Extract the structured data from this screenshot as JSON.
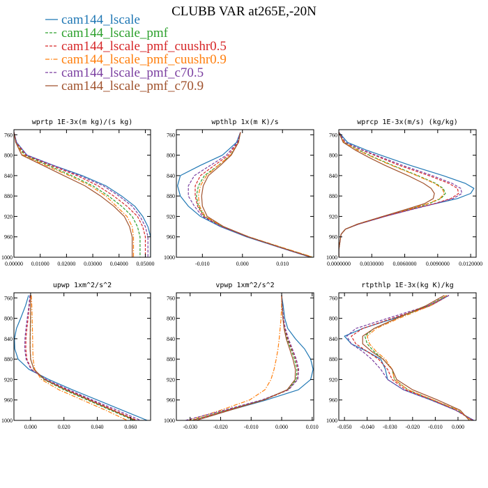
{
  "title": "CLUBB VAR at265E,-20N",
  "legend": [
    {
      "name": "cam144_lscale",
      "color": "#1f77b4",
      "dash": "solid"
    },
    {
      "name": "cam144_lscale_pmf",
      "color": "#2ca02c",
      "dash": "dashed"
    },
    {
      "name": "cam144_lscale_pmf_cuushr0.5",
      "color": "#d62728",
      "dash": "dashed"
    },
    {
      "name": "cam144_lscale_pmf_cuushr0.9",
      "color": "#ff7f0e",
      "dash": "dashdot"
    },
    {
      "name": "cam144_lscale_pmf_c70.5",
      "color": "#7b3fa0",
      "dash": "dashed"
    },
    {
      "name": "cam144_lscale_pmf_c70.9",
      "color": "#a0522d",
      "dash": "solid"
    }
  ],
  "chart_data": [
    {
      "type": "line",
      "title": "wprtp  1E-3x(m kg)/(s kg)",
      "xlim": [
        0,
        0.052
      ],
      "xticks": [
        0,
        0.01,
        0.02,
        0.03,
        0.04,
        0.05
      ],
      "xticklabels": [
        "0.00000",
        "0.01000",
        "0.02000",
        "0.03000",
        "0.04000",
        "0.05000"
      ],
      "ylim": [
        750,
        1000
      ],
      "yticks": [
        760,
        800,
        840,
        880,
        920,
        960,
        1000
      ],
      "levels": [
        755,
        775,
        800,
        820,
        840,
        860,
        880,
        900,
        920,
        940,
        960,
        980,
        1000
      ],
      "series": [
        {
          "name": "cam144_lscale",
          "x": [
            0,
            0.001,
            0.005,
            0.015,
            0.026,
            0.035,
            0.041,
            0.046,
            0.049,
            0.051,
            0.052,
            0.052,
            0.052
          ]
        },
        {
          "name": "cam144_lscale_pmf",
          "x": [
            0,
            0.0008,
            0.004,
            0.013,
            0.022,
            0.03,
            0.036,
            0.041,
            0.045,
            0.047,
            0.048,
            0.048,
            0.048
          ]
        },
        {
          "name": "cam144_lscale_pmf_cuushr0.5",
          "x": [
            0,
            0.0009,
            0.0045,
            0.014,
            0.024,
            0.032,
            0.038,
            0.043,
            0.047,
            0.049,
            0.05,
            0.05,
            0.05
          ]
        },
        {
          "name": "cam144_lscale_pmf_cuushr0.9",
          "x": [
            0,
            0.0007,
            0.0035,
            0.012,
            0.021,
            0.029,
            0.035,
            0.039,
            0.043,
            0.045,
            0.0455,
            0.0455,
            0.0455
          ]
        },
        {
          "name": "cam144_lscale_pmf_c70.5",
          "x": [
            0,
            0.001,
            0.005,
            0.015,
            0.025,
            0.034,
            0.04,
            0.045,
            0.048,
            0.05,
            0.051,
            0.051,
            0.051
          ]
        },
        {
          "name": "cam144_lscale_pmf_c70.9",
          "x": [
            0,
            0.0007,
            0.003,
            0.011,
            0.019,
            0.027,
            0.033,
            0.038,
            0.042,
            0.044,
            0.045,
            0.045,
            0.045
          ]
        }
      ]
    },
    {
      "type": "line",
      "title": "wpthlp  1x(m K)/s",
      "xlim": [
        -0.0165,
        0.0178
      ],
      "xticks": [
        -0.01,
        0,
        0.01
      ],
      "xticklabels": [
        "-0.010",
        "0.000",
        "0.010"
      ],
      "ylim": [
        750,
        1000
      ],
      "yticks": [
        760,
        800,
        840,
        880,
        920,
        960,
        1000
      ],
      "levels": [
        755,
        775,
        800,
        820,
        840,
        860,
        880,
        900,
        920,
        940,
        960,
        980,
        1000
      ],
      "series": [
        {
          "name": "cam144_lscale",
          "x": [
            -0.0005,
            -0.0015,
            -0.005,
            -0.0105,
            -0.0155,
            -0.0162,
            -0.0155,
            -0.0135,
            -0.0105,
            -0.0055,
            0.001,
            0.009,
            0.017
          ]
        },
        {
          "name": "cam144_lscale_pmf",
          "x": [
            -0.0005,
            -0.001,
            -0.003,
            -0.006,
            -0.0095,
            -0.011,
            -0.0115,
            -0.011,
            -0.0095,
            -0.005,
            0.0015,
            0.0095,
            0.0175
          ]
        },
        {
          "name": "cam144_lscale_pmf_cuushr0.5",
          "x": [
            -0.0005,
            -0.0012,
            -0.0035,
            -0.007,
            -0.0105,
            -0.0118,
            -0.0118,
            -0.0112,
            -0.0097,
            -0.0052,
            0.0012,
            0.0092,
            0.0172
          ]
        },
        {
          "name": "cam144_lscale_pmf_cuushr0.9",
          "x": [
            -0.0005,
            -0.001,
            -0.003,
            -0.006,
            -0.009,
            -0.0105,
            -0.011,
            -0.0107,
            -0.0093,
            -0.0048,
            0.0016,
            0.0096,
            0.0177
          ]
        },
        {
          "name": "cam144_lscale_pmf_c70.5",
          "x": [
            -0.0005,
            -0.0013,
            -0.004,
            -0.008,
            -0.012,
            -0.0135,
            -0.0135,
            -0.012,
            -0.01,
            -0.0053,
            0.0012,
            0.009,
            0.017
          ]
        },
        {
          "name": "cam144_lscale_pmf_c70.9",
          "x": [
            -0.0005,
            -0.001,
            -0.0028,
            -0.0055,
            -0.0085,
            -0.0098,
            -0.0102,
            -0.01,
            -0.0088,
            -0.0047,
            0.0015,
            0.0093,
            0.0173
          ]
        }
      ]
    },
    {
      "type": "line",
      "title": "wprcp  1E-3x(m/s) (kg/kg)",
      "xlim": [
        0,
        0.0125
      ],
      "xticks": [
        0,
        0.003,
        0.006,
        0.009,
        0.012
      ],
      "xticklabels": [
        "0.0000000",
        "0.0030000",
        "0.0060000",
        "0.0090000",
        "0.0120000"
      ],
      "ylim": [
        750,
        1000
      ],
      "yticks": [
        760,
        800,
        840,
        880,
        920,
        960,
        1000
      ],
      "levels": [
        755,
        775,
        790,
        805,
        820,
        840,
        855,
        865,
        875,
        885,
        895,
        905,
        920,
        935,
        945,
        955,
        970,
        985,
        1000
      ],
      "series": [
        {
          "name": "cam144_lscale",
          "x": [
            0,
            0.0008,
            0.0025,
            0.0045,
            0.0065,
            0.0095,
            0.0115,
            0.0123,
            0.012,
            0.0108,
            0.0088,
            0.0068,
            0.0042,
            0.0018,
            0.0006,
            0.0002,
            0.0001,
            0,
            0
          ]
        },
        {
          "name": "cam144_lscale_pmf",
          "x": [
            0,
            0.0005,
            0.0018,
            0.0033,
            0.0049,
            0.0072,
            0.0088,
            0.0095,
            0.0097,
            0.0093,
            0.0082,
            0.0066,
            0.0041,
            0.0018,
            0.0006,
            0.0002,
            0.0001,
            0,
            0
          ]
        },
        {
          "name": "cam144_lscale_pmf_cuushr0.5",
          "x": [
            0,
            0.0006,
            0.0021,
            0.0038,
            0.0055,
            0.0082,
            0.01,
            0.0108,
            0.0109,
            0.0102,
            0.0087,
            0.0068,
            0.0042,
            0.0018,
            0.0006,
            0.0002,
            0.0001,
            0,
            0
          ]
        },
        {
          "name": "cam144_lscale_pmf_cuushr0.9",
          "x": [
            0,
            0.0005,
            0.0017,
            0.0032,
            0.0048,
            0.0071,
            0.0087,
            0.0094,
            0.0096,
            0.0092,
            0.0081,
            0.0065,
            0.004,
            0.0017,
            0.0006,
            0.0002,
            0.0001,
            0,
            0
          ]
        },
        {
          "name": "cam144_lscale_pmf_c70.5",
          "x": [
            0,
            0.0006,
            0.0022,
            0.004,
            0.0058,
            0.0085,
            0.0103,
            0.0111,
            0.0112,
            0.0104,
            0.0088,
            0.0069,
            0.0042,
            0.0018,
            0.0006,
            0.0002,
            0.0001,
            0,
            0
          ]
        },
        {
          "name": "cam144_lscale_pmf_c70.9",
          "x": [
            0,
            0.0004,
            0.0015,
            0.0028,
            0.0042,
            0.0063,
            0.0077,
            0.0084,
            0.0087,
            0.0086,
            0.0078,
            0.0063,
            0.004,
            0.0017,
            0.0006,
            0.0002,
            0.0001,
            0,
            0
          ]
        }
      ]
    },
    {
      "type": "line",
      "title": "upwp  1xm^2/s^2",
      "xlim": [
        -0.01,
        0.072
      ],
      "xticks": [
        0,
        0.02,
        0.04,
        0.06
      ],
      "xticklabels": [
        "0.000",
        "0.020",
        "0.040",
        "0.060"
      ],
      "ylim": [
        750,
        1000
      ],
      "yticks": [
        760,
        800,
        840,
        880,
        920,
        960,
        1000
      ],
      "levels": [
        755,
        775,
        800,
        820,
        840,
        860,
        880,
        900,
        920,
        940,
        960,
        980,
        1000
      ],
      "series": [
        {
          "name": "cam144_lscale",
          "x": [
            -0.0012,
            -0.003,
            -0.006,
            -0.0085,
            -0.0097,
            -0.0095,
            -0.0075,
            -0.001,
            0.011,
            0.025,
            0.04,
            0.055,
            0.07
          ]
        },
        {
          "name": "cam144_lscale_pmf",
          "x": [
            0,
            0,
            0,
            -0.0001,
            -0.0002,
            -0.0002,
            0,
            0.002,
            0.008,
            0.02,
            0.034,
            0.048,
            0.062
          ]
        },
        {
          "name": "cam144_lscale_pmf_cuushr0.5",
          "x": [
            -0.0003,
            -0.0008,
            -0.0015,
            -0.0022,
            -0.0028,
            -0.0029,
            -0.0022,
            0.0005,
            0.009,
            0.022,
            0.036,
            0.05,
            0.064
          ]
        },
        {
          "name": "cam144_lscale_pmf_cuushr0.9",
          "x": [
            0.0004,
            0.0007,
            0.0009,
            0.0011,
            0.0012,
            0.0013,
            0.0015,
            0.0025,
            0.0065,
            0.017,
            0.031,
            0.045,
            0.058
          ]
        },
        {
          "name": "cam144_lscale_pmf_c70.5",
          "x": [
            -0.0004,
            -0.001,
            -0.002,
            -0.0028,
            -0.0034,
            -0.0035,
            -0.0027,
            0.0003,
            0.0095,
            0.023,
            0.037,
            0.052,
            0.066
          ]
        },
        {
          "name": "cam144_lscale_pmf_c70.9",
          "x": [
            0,
            0,
            -0.0001,
            -0.0002,
            -0.0003,
            -0.0003,
            0,
            0.002,
            0.0085,
            0.021,
            0.035,
            0.049,
            0.063
          ]
        }
      ]
    },
    {
      "type": "line",
      "title": "vpwp  1xm^2/s^2",
      "xlim": [
        -0.0345,
        0.0105
      ],
      "xticks": [
        -0.03,
        -0.02,
        -0.01,
        0,
        0.01
      ],
      "xticklabels": [
        "-0.030",
        "-0.020",
        "-0.010",
        "0.000",
        "0.010"
      ],
      "ylim": [
        750,
        1000
      ],
      "yticks": [
        760,
        800,
        840,
        880,
        920,
        960,
        1000
      ],
      "levels": [
        755,
        775,
        800,
        820,
        840,
        860,
        880,
        900,
        920,
        940,
        960,
        980,
        1000
      ],
      "series": [
        {
          "name": "cam144_lscale",
          "x": [
            0,
            0.0005,
            0.001,
            0.002,
            0.0045,
            0.0075,
            0.0095,
            0.0103,
            0.0095,
            0.0055,
            -0.005,
            -0.017,
            -0.028
          ]
        },
        {
          "name": "cam144_lscale_pmf",
          "x": [
            0,
            0.0002,
            0.0005,
            0.001,
            0.0018,
            0.003,
            0.0042,
            0.005,
            0.0048,
            0.002,
            -0.006,
            -0.018,
            -0.0295
          ]
        },
        {
          "name": "cam144_lscale_pmf_cuushr0.5",
          "x": [
            0,
            0.0002,
            0.0006,
            0.0011,
            0.002,
            0.0033,
            0.0046,
            0.0054,
            0.0052,
            0.0023,
            -0.0058,
            -0.0178,
            -0.0292
          ]
        },
        {
          "name": "cam144_lscale_pmf_cuushr0.9",
          "x": [
            0,
            0,
            -0.0002,
            -0.0005,
            -0.0008,
            -0.0012,
            -0.0018,
            -0.0025,
            -0.0035,
            -0.0055,
            -0.0105,
            -0.02,
            -0.0305
          ]
        },
        {
          "name": "cam144_lscale_pmf_c70.5",
          "x": [
            0,
            0.0002,
            0.0006,
            0.0012,
            0.0022,
            0.0035,
            0.0048,
            0.0056,
            0.0053,
            0.0022,
            -0.0065,
            -0.019,
            -0.0315
          ]
        },
        {
          "name": "cam144_lscale_pmf_c70.9",
          "x": [
            0,
            0.0001,
            0.0004,
            0.0008,
            0.0015,
            0.0026,
            0.0037,
            0.0045,
            0.0044,
            0.0018,
            -0.0058,
            -0.017,
            -0.028
          ]
        }
      ]
    },
    {
      "type": "line",
      "title": "rtpthlp  1E-3x(kg K)/kg",
      "xlim": [
        -0.0525,
        0.008
      ],
      "xticks": [
        -0.05,
        -0.04,
        -0.03,
        -0.02,
        -0.01,
        0
      ],
      "xticklabels": [
        "-0.050",
        "-0.040",
        "-0.030",
        "-0.020",
        "-0.010",
        "0.000"
      ],
      "ylim": [
        750,
        1000
      ],
      "yticks": [
        760,
        800,
        840,
        880,
        920,
        960,
        1000
      ],
      "levels": [
        755,
        775,
        800,
        820,
        835,
        850,
        865,
        880,
        900,
        920,
        940,
        960,
        980,
        1000
      ],
      "series": [
        {
          "name": "cam144_lscale",
          "x": [
            -0.004,
            -0.012,
            -0.028,
            -0.042,
            -0.05,
            -0.047,
            -0.04,
            -0.034,
            -0.032,
            -0.031,
            -0.024,
            -0.012,
            -0.001,
            0.007
          ]
        },
        {
          "name": "cam144_lscale_pmf",
          "x": [
            -0.005,
            -0.013,
            -0.027,
            -0.037,
            -0.041,
            -0.04,
            -0.037,
            -0.033,
            -0.029,
            -0.028,
            -0.022,
            -0.011,
            0,
            0.006
          ]
        },
        {
          "name": "cam144_lscale_pmf_cuushr0.5",
          "x": [
            -0.004,
            -0.012,
            -0.029,
            -0.042,
            -0.047,
            -0.045,
            -0.04,
            -0.035,
            -0.031,
            -0.029,
            -0.023,
            -0.011,
            -0.001,
            0.0065
          ]
        },
        {
          "name": "cam144_lscale_pmf_cuushr0.9",
          "x": [
            -0.005,
            -0.012,
            -0.026,
            -0.036,
            -0.04,
            -0.039,
            -0.036,
            -0.032,
            -0.029,
            -0.028,
            -0.022,
            -0.011,
            0,
            0.006
          ]
        },
        {
          "name": "cam144_lscale_pmf_c70.5",
          "x": [
            -0.004,
            -0.013,
            -0.031,
            -0.045,
            -0.049,
            -0.047,
            -0.042,
            -0.038,
            -0.034,
            -0.031,
            -0.024,
            -0.012,
            -0.001,
            0.007
          ]
        },
        {
          "name": "cam144_lscale_pmf_c70.9",
          "x": [
            -0.006,
            -0.014,
            -0.027,
            -0.037,
            -0.042,
            -0.042,
            -0.038,
            -0.033,
            -0.029,
            -0.027,
            -0.02,
            -0.009,
            0.001,
            0.005
          ]
        }
      ]
    }
  ]
}
